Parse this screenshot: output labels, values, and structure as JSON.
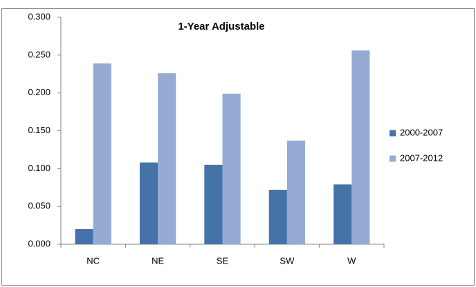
{
  "chart_data": {
    "type": "bar",
    "title": "1-Year Adjustable",
    "categories": [
      "NC",
      "NE",
      "SE",
      "SW",
      "W"
    ],
    "series": [
      {
        "name": "2000-2007",
        "color": "#4572a7",
        "values": [
          0.02,
          0.108,
          0.105,
          0.072,
          0.079
        ]
      },
      {
        "name": "2007-2012",
        "color": "#95abd3",
        "values": [
          0.239,
          0.226,
          0.199,
          0.137,
          0.256
        ]
      }
    ],
    "ylim": [
      0,
      0.3
    ],
    "yticks": [
      {
        "value": 0,
        "label": "0.000"
      },
      {
        "value": 0.05,
        "label": "0.050"
      },
      {
        "value": 0.1,
        "label": "0.100"
      },
      {
        "value": 0.15,
        "label": "0.150"
      },
      {
        "value": 0.2,
        "label": "0.200"
      },
      {
        "value": 0.25,
        "label": "0.250"
      },
      {
        "value": 0.3,
        "label": "0.300"
      }
    ],
    "grid": false,
    "legend": "right"
  }
}
